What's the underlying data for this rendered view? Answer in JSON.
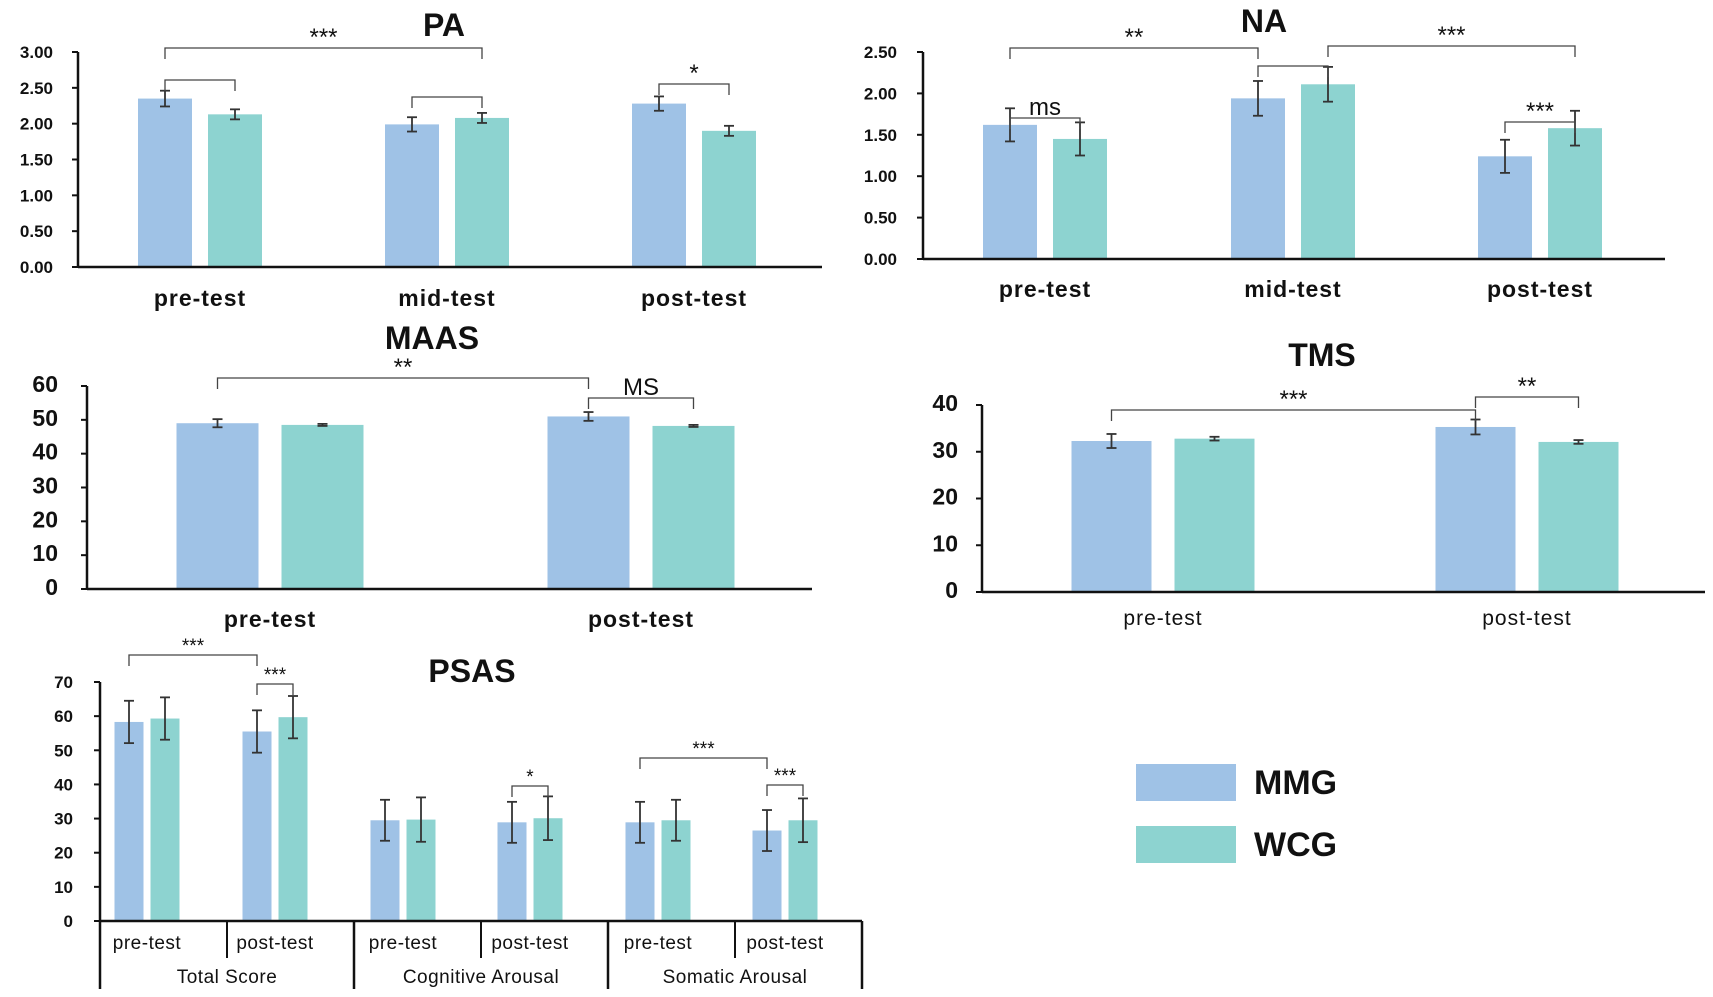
{
  "colors": {
    "mmg": "#9FC2E6",
    "wcg": "#8DD3D0",
    "axis": "#111111",
    "bracket": "#444444",
    "errbar": "#333333"
  },
  "legend": {
    "mmg_label": "MMG",
    "wcg_label": "WCG"
  },
  "chart_data": [
    {
      "id": "pa",
      "type": "bar",
      "title": "PA",
      "categories": [
        "pre-test",
        "mid-test",
        "post-test"
      ],
      "series": [
        {
          "name": "MMG",
          "values": [
            2.35,
            1.99,
            2.28
          ],
          "errors": [
            0.11,
            0.1,
            0.1
          ]
        },
        {
          "name": "WCG",
          "values": [
            2.13,
            2.08,
            1.9
          ],
          "errors": [
            0.07,
            0.07,
            0.07
          ]
        }
      ],
      "ylim": [
        0,
        3
      ],
      "ticks": [
        0,
        0.5,
        1,
        1.5,
        2,
        2.5,
        3
      ],
      "tick_labels": [
        "0.00",
        "0.50",
        "1.00",
        "1.50",
        "2.00",
        "2.50",
        "3.00"
      ],
      "annotations": [
        {
          "label": "***",
          "from": [
            0,
            0
          ],
          "to": [
            1,
            1
          ]
        },
        {
          "label": "",
          "from": [
            0,
            0
          ],
          "to": [
            0,
            1
          ]
        },
        {
          "label": "",
          "from": [
            1,
            0
          ],
          "to": [
            1,
            1
          ]
        },
        {
          "label": "*",
          "from": [
            2,
            0
          ],
          "to": [
            2,
            1
          ]
        }
      ]
    },
    {
      "id": "na",
      "type": "bar",
      "title": "NA",
      "categories": [
        "pre-test",
        "mid-test",
        "post-test"
      ],
      "series": [
        {
          "name": "MMG",
          "values": [
            1.62,
            1.94,
            1.24
          ],
          "errors": [
            0.2,
            0.21,
            0.2
          ]
        },
        {
          "name": "WCG",
          "values": [
            1.45,
            2.11,
            1.58
          ],
          "errors": [
            0.2,
            0.21,
            0.21
          ]
        }
      ],
      "ylim": [
        0,
        2.5
      ],
      "ticks": [
        0,
        0.5,
        1,
        1.5,
        2,
        2.5
      ],
      "tick_labels": [
        "0.00",
        "0.50",
        "1.00",
        "1.50",
        "2.00",
        "2.50"
      ],
      "annotations": [
        {
          "label": "ms",
          "from": [
            0,
            0
          ],
          "to": [
            0,
            1
          ]
        },
        {
          "label": "**",
          "from": [
            0,
            0
          ],
          "to": [
            1,
            0
          ]
        },
        {
          "label": "",
          "from": [
            1,
            0
          ],
          "to": [
            1,
            1
          ]
        },
        {
          "label": "***",
          "from": [
            1,
            1
          ],
          "to": [
            2,
            1
          ]
        },
        {
          "label": "***",
          "from": [
            2,
            0
          ],
          "to": [
            2,
            1
          ]
        }
      ]
    },
    {
      "id": "maas",
      "type": "bar",
      "title": "MAAS",
      "categories": [
        "pre-test",
        "post-test"
      ],
      "series": [
        {
          "name": "MMG",
          "values": [
            49,
            51
          ],
          "errors": [
            1.2,
            1.3
          ]
        },
        {
          "name": "WCG",
          "values": [
            48.5,
            48.2
          ],
          "errors": [
            0.3,
            0.3
          ]
        }
      ],
      "ylim": [
        0,
        60
      ],
      "ticks": [
        0,
        10,
        20,
        30,
        40,
        50,
        60
      ],
      "tick_labels": [
        "0",
        "10",
        "20",
        "30",
        "40",
        "50",
        "60"
      ],
      "annotations": [
        {
          "label": "**",
          "from": [
            0,
            0
          ],
          "to": [
            1,
            0
          ]
        },
        {
          "label": "MS",
          "from": [
            1,
            0
          ],
          "to": [
            1,
            1
          ]
        }
      ]
    },
    {
      "id": "tms",
      "type": "bar",
      "title": "TMS",
      "categories": [
        "pre-test",
        "post-test"
      ],
      "series": [
        {
          "name": "MMG",
          "values": [
            32.3,
            35.3
          ],
          "errors": [
            1.5,
            1.6
          ]
        },
        {
          "name": "WCG",
          "values": [
            32.8,
            32.1
          ],
          "errors": [
            0.4,
            0.4
          ]
        }
      ],
      "ylim": [
        0,
        40
      ],
      "ticks": [
        0,
        10,
        20,
        30,
        40
      ],
      "tick_labels": [
        "0",
        "10",
        "20",
        "30",
        "40"
      ],
      "annotations": [
        {
          "label": "***",
          "from": [
            0,
            0
          ],
          "to": [
            1,
            0
          ]
        },
        {
          "label": "**",
          "from": [
            1,
            0
          ],
          "to": [
            1,
            1
          ]
        }
      ]
    },
    {
      "id": "psas",
      "type": "bar",
      "title": "PSAS",
      "categories": [
        "pre-test",
        "post-test",
        "pre-test",
        "post-test",
        "pre-test",
        "post-test"
      ],
      "groups": [
        "Total Score",
        "Cognitive Arousal",
        "Somatic Arousal"
      ],
      "series": [
        {
          "name": "MMG",
          "values": [
            58.3,
            55.5,
            29.5,
            28.9,
            28.9,
            26.5
          ],
          "errors": [
            6.2,
            6.2,
            6,
            6,
            6,
            6
          ]
        },
        {
          "name": "WCG",
          "values": [
            59.3,
            59.7,
            29.7,
            30.1,
            29.5,
            29.5
          ],
          "errors": [
            6.2,
            6.2,
            6.5,
            6.4,
            6,
            6.4
          ]
        }
      ],
      "ylim": [
        0,
        70
      ],
      "ticks": [
        0,
        10,
        20,
        30,
        40,
        50,
        60,
        70
      ],
      "tick_labels": [
        "0",
        "10",
        "20",
        "30",
        "40",
        "50",
        "60",
        "70"
      ],
      "annotations": [
        {
          "label": "***",
          "from": [
            0,
            0
          ],
          "to": [
            1,
            0
          ]
        },
        {
          "label": "***",
          "from": [
            1,
            0
          ],
          "to": [
            1,
            1
          ]
        },
        {
          "label": "*",
          "from": [
            3,
            0
          ],
          "to": [
            3,
            1
          ]
        },
        {
          "label": "***",
          "from": [
            4,
            0
          ],
          "to": [
            5,
            0
          ]
        },
        {
          "label": "***",
          "from": [
            5,
            0
          ],
          "to": [
            5,
            1
          ]
        }
      ]
    }
  ]
}
